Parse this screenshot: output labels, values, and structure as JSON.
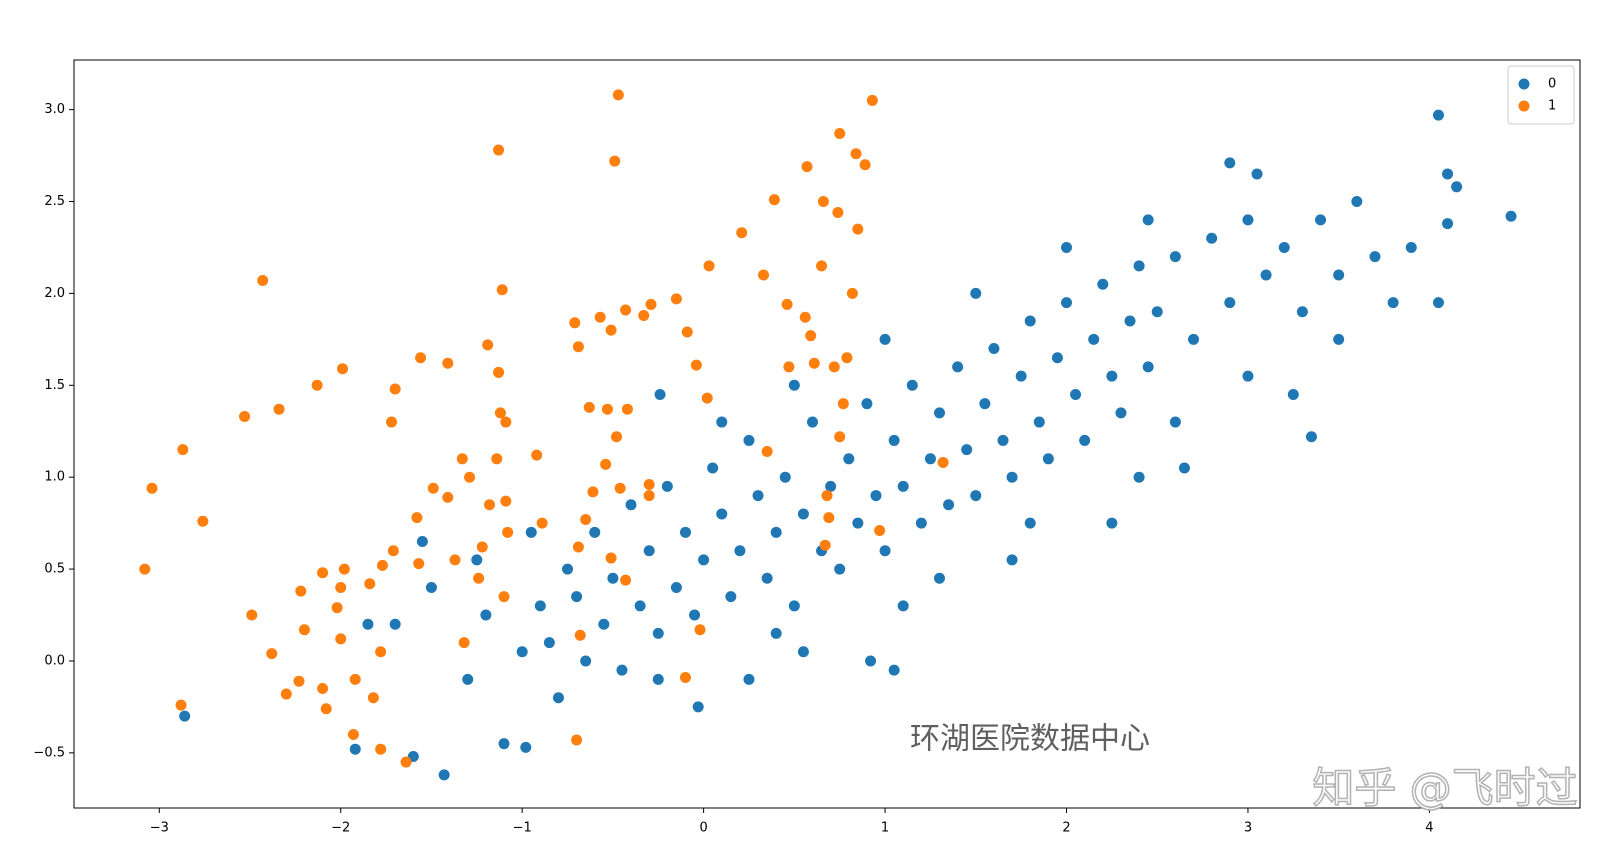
{
  "chart_data": {
    "type": "scatter",
    "xlim": [
      -3.47,
      4.83
    ],
    "ylim": [
      -0.8,
      3.27
    ],
    "xticks": [
      {
        "value": -3,
        "label": "−3"
      },
      {
        "value": -2,
        "label": "−2"
      },
      {
        "value": -1,
        "label": "−1"
      },
      0,
      1,
      2,
      3,
      4
    ],
    "yticks": [
      {
        "value": -0.5,
        "label": "−0.5"
      },
      {
        "value": 0,
        "label": "0.0"
      },
      0.5,
      {
        "value": 1,
        "label": "1.0"
      },
      1.5,
      {
        "value": 2,
        "label": "2.0"
      },
      2.5,
      {
        "value": 3,
        "label": "3.0"
      }
    ],
    "legend": "upper right",
    "annotations": [
      "环湖医院数据中心",
      "知乎 @飞时过"
    ],
    "series": [
      {
        "name": "0",
        "color": "#1f77b4",
        "x": [
          -2.86,
          -1.92,
          -1.43,
          -1.6,
          -1.7,
          -1.55,
          -1.3,
          -1.2,
          -1.1,
          -1.0,
          -0.98,
          -0.9,
          -0.85,
          -0.8,
          -0.75,
          -0.7,
          -0.65,
          -0.6,
          -0.55,
          -0.5,
          -0.45,
          -0.4,
          -0.35,
          -0.3,
          -0.25,
          -0.2,
          -0.15,
          -0.1,
          -0.05,
          0.0,
          0.05,
          0.1,
          0.15,
          0.2,
          0.25,
          0.3,
          0.35,
          0.4,
          0.45,
          0.5,
          0.55,
          0.6,
          0.65,
          0.7,
          0.75,
          0.8,
          0.85,
          0.9,
          0.95,
          1.0,
          1.05,
          1.1,
          1.15,
          1.2,
          1.25,
          1.3,
          1.35,
          1.4,
          1.45,
          1.5,
          1.55,
          1.6,
          1.65,
          1.7,
          1.75,
          1.8,
          1.85,
          1.9,
          1.95,
          2.0,
          2.05,
          2.1,
          2.15,
          2.2,
          2.25,
          2.3,
          2.35,
          2.4,
          2.45,
          2.5,
          2.6,
          2.7,
          2.8,
          2.9,
          3.0,
          3.1,
          3.2,
          3.3,
          3.4,
          3.5,
          3.6,
          3.7,
          3.8,
          3.9,
          4.05,
          4.1,
          4.05,
          4.15,
          4.45,
          4.1,
          2.9,
          3.05,
          3.35,
          2.65,
          1.7,
          1.1,
          1.05,
          0.92,
          0.25,
          -0.03,
          -0.25,
          0.55,
          2.25,
          2.6,
          -0.24,
          3.25,
          -1.5,
          -1.85,
          -1.25,
          -0.95,
          0.4,
          1.3,
          1.8,
          2.4,
          3.0,
          3.5,
          0.1,
          0.5,
          1.0,
          1.5,
          2.0,
          2.45
        ],
        "values": [
          -0.3,
          -0.48,
          -0.62,
          -0.52,
          0.2,
          0.65,
          -0.1,
          0.25,
          -0.45,
          0.05,
          -0.47,
          0.3,
          0.1,
          -0.2,
          0.5,
          0.35,
          0.0,
          0.7,
          0.2,
          0.45,
          -0.05,
          0.85,
          0.3,
          0.6,
          0.15,
          0.95,
          0.4,
          0.7,
          0.25,
          0.55,
          1.05,
          0.8,
          0.35,
          0.6,
          1.2,
          0.9,
          0.45,
          0.7,
          1.0,
          0.3,
          0.8,
          1.3,
          0.6,
          0.95,
          0.5,
          1.1,
          0.75,
          1.4,
          0.9,
          0.6,
          1.2,
          0.95,
          1.5,
          0.75,
          1.1,
          1.35,
          0.85,
          1.6,
          1.15,
          0.9,
          1.4,
          1.7,
          1.2,
          1.0,
          1.55,
          1.85,
          1.3,
          1.1,
          1.65,
          1.95,
          1.45,
          1.2,
          1.75,
          2.05,
          1.55,
          1.35,
          1.85,
          2.15,
          1.6,
          1.9,
          2.2,
          1.75,
          2.3,
          1.95,
          2.4,
          2.1,
          2.25,
          1.9,
          2.4,
          2.1,
          2.5,
          2.2,
          1.95,
          2.25,
          1.95,
          2.65,
          2.97,
          2.58,
          2.42,
          2.38,
          2.71,
          2.65,
          1.22,
          1.05,
          0.55,
          0.3,
          -0.05,
          0.0,
          -0.1,
          -0.25,
          -0.1,
          0.05,
          0.75,
          1.3,
          1.45,
          1.45,
          0.4,
          0.2,
          0.55,
          0.7,
          0.15,
          0.45,
          0.75,
          1.0,
          1.55,
          1.75,
          1.3,
          1.5,
          1.75,
          2.0,
          2.25,
          2.4
        ]
      },
      {
        "name": "1",
        "color": "#ff7f0e",
        "x": [
          -0.47,
          -1.13,
          -0.49,
          -2.43,
          -1.11,
          -1.19,
          -1.99,
          -1.56,
          -1.41,
          -2.13,
          -1.13,
          -1.7,
          -2.53,
          -2.34,
          -1.72,
          -1.12,
          -1.09,
          -2.87,
          -3.04,
          -1.33,
          -1.14,
          -0.92,
          -1.49,
          -1.41,
          -2.76,
          -3.08,
          -2.49,
          -2.88,
          -0.7,
          -0.51,
          -0.43,
          -0.68,
          -0.02,
          -0.1,
          0.35,
          0.68,
          0.69,
          0.67,
          0.97,
          1.32,
          -1.32,
          0.93,
          0.75,
          0.57,
          0.39,
          0.21,
          0.03,
          -0.15,
          -0.29,
          -0.43,
          -0.57,
          -0.71,
          -0.33,
          -0.51,
          -0.69,
          -0.09,
          -0.04,
          0.02,
          0.89,
          0.85,
          0.82,
          0.79,
          0.77,
          0.75,
          0.84,
          0.74,
          0.65,
          0.56,
          0.47,
          0.33,
          0.46,
          0.59,
          0.72,
          0.61,
          0.66,
          -0.42,
          -0.53,
          -0.63,
          -0.48,
          -0.54,
          -0.61,
          -0.46,
          -0.3,
          -0.3,
          -0.65,
          -0.69,
          -0.89,
          -1.09,
          -1.29,
          -1.18,
          -1.08,
          -1.22,
          -1.37,
          -1.24,
          -1.1,
          -1.57,
          -1.77,
          -1.98,
          -1.58,
          -1.71,
          -1.84,
          -2.02,
          -2.2,
          -2.38,
          -2.23,
          -2.08,
          -1.93,
          -1.78,
          -1.64,
          -2.0,
          -1.78,
          -1.92,
          -2.1,
          -2.1,
          -2.0,
          -2.3,
          -1.82,
          -2.22
        ],
        "values": [
          3.08,
          2.78,
          2.72,
          2.07,
          2.02,
          1.72,
          1.59,
          1.65,
          1.62,
          1.5,
          1.57,
          1.48,
          1.33,
          1.37,
          1.3,
          1.35,
          1.3,
          1.15,
          0.94,
          1.1,
          1.1,
          1.12,
          0.94,
          0.89,
          0.76,
          0.5,
          0.25,
          -0.24,
          -0.43,
          0.56,
          0.44,
          0.14,
          0.17,
          -0.09,
          1.14,
          0.9,
          0.78,
          0.63,
          0.71,
          1.08,
          0.1,
          3.05,
          2.87,
          2.69,
          2.51,
          2.33,
          2.15,
          1.97,
          1.94,
          1.91,
          1.87,
          1.84,
          1.88,
          1.8,
          1.71,
          1.79,
          1.61,
          1.43,
          2.7,
          2.35,
          2.0,
          1.65,
          1.4,
          1.22,
          2.76,
          2.44,
          2.15,
          1.87,
          1.6,
          2.1,
          1.94,
          1.77,
          1.6,
          1.62,
          2.5,
          1.37,
          1.37,
          1.38,
          1.22,
          1.07,
          0.92,
          0.94,
          0.96,
          0.9,
          0.77,
          0.62,
          0.75,
          0.87,
          1.0,
          0.85,
          0.7,
          0.62,
          0.55,
          0.45,
          0.35,
          0.53,
          0.52,
          0.5,
          0.78,
          0.6,
          0.42,
          0.29,
          0.17,
          0.04,
          -0.11,
          -0.26,
          -0.4,
          -0.48,
          -0.55,
          0.12,
          0.05,
          -0.1,
          -0.15,
          0.48,
          0.4,
          -0.18,
          -0.2,
          0.38
        ]
      }
    ]
  }
}
